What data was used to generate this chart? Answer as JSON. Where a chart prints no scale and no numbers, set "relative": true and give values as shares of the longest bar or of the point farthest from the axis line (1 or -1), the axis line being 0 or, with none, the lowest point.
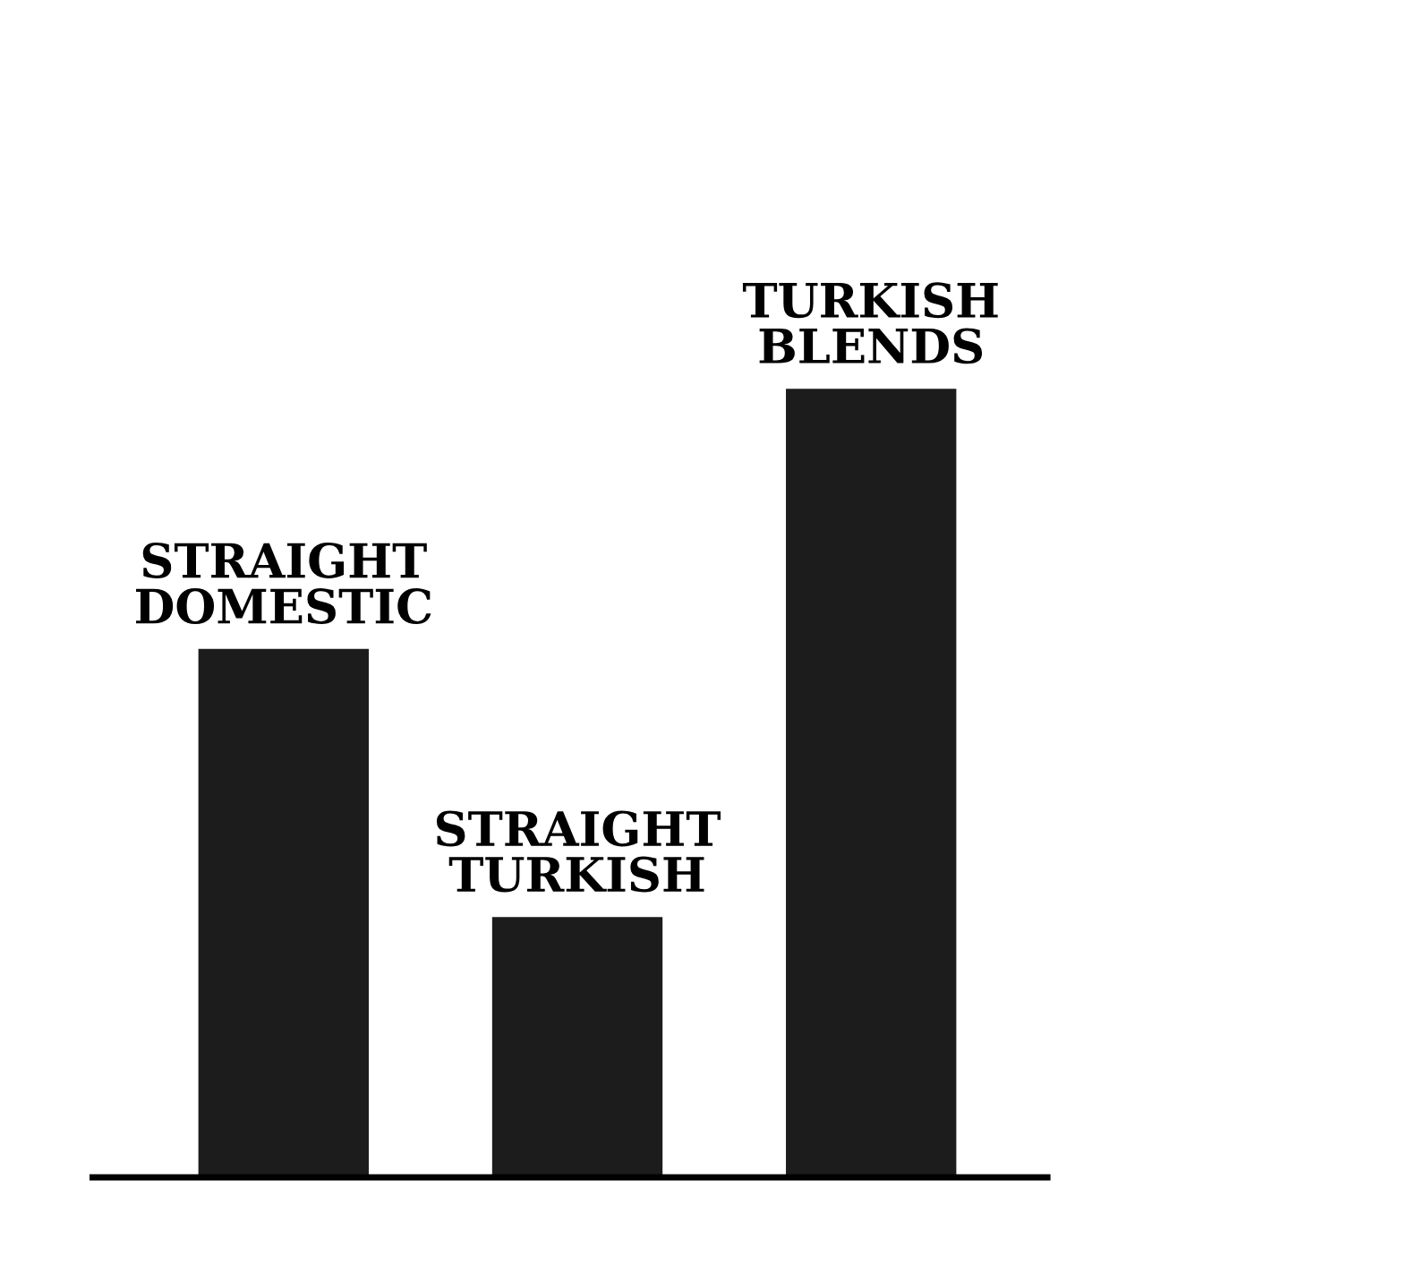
{
  "chart_data": {
    "type": "bar",
    "relative": true,
    "categories": [
      "STRAIGHT\nDOMESTIC",
      "STRAIGHT\nTURKISH",
      "TURKISH\nBLENDS"
    ],
    "values": [
      0.67,
      0.33,
      1
    ],
    "color": "#1c1c1c"
  }
}
